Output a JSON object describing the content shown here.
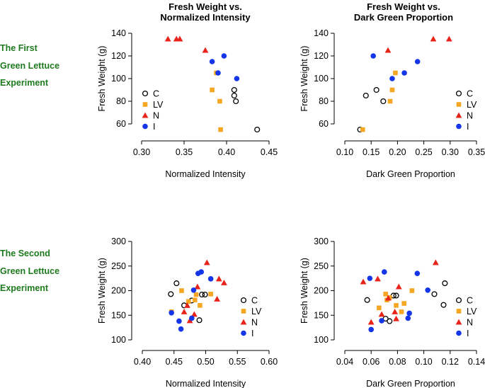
{
  "column_titles": [
    [
      "Fresh Weight vs.",
      "Normalized Intensity"
    ],
    [
      "Fresh Weight vs.",
      "Dark Green Proportion"
    ]
  ],
  "row_labels": [
    [
      "The First",
      "Green Lettuce",
      "Experiment"
    ],
    [
      "The Second",
      "Green Lettuce",
      "Experiment"
    ]
  ],
  "legend_items": [
    {
      "label": "C",
      "marker": "open-circle",
      "color": "#000000"
    },
    {
      "label": "LV",
      "marker": "square",
      "color": "#F5A623"
    },
    {
      "label": "N",
      "marker": "triangle",
      "color": "#E8231A"
    },
    {
      "label": "I",
      "marker": "circle",
      "color": "#1435E8"
    }
  ],
  "chart_data": [
    {
      "type": "scatter",
      "panel": "first-intensity",
      "xlabel": "Normalized Intensity",
      "ylabel": "Fresh Weight (g)",
      "xlim": [
        0.3,
        0.45
      ],
      "ylim": [
        52,
        145
      ],
      "xticks": [
        0.3,
        0.35,
        0.4,
        0.45
      ],
      "xtick_labels": [
        "0.30",
        "0.35",
        "0.40",
        "0.45"
      ],
      "yticks": [
        60,
        80,
        100,
        120,
        140
      ],
      "ytick_labels": [
        "60",
        "80",
        "100",
        "120",
        "140"
      ],
      "series": [
        {
          "name": "C",
          "points": [
            [
              0.409,
              90
            ],
            [
              0.409,
              85
            ],
            [
              0.411,
              80
            ],
            [
              0.436,
              55
            ]
          ]
        },
        {
          "name": "LV",
          "points": [
            [
              0.383,
              90
            ],
            [
              0.392,
              80
            ],
            [
              0.393,
              55
            ],
            [
              0.388,
              105
            ]
          ]
        },
        {
          "name": "N",
          "points": [
            [
              0.331,
              135
            ],
            [
              0.341,
              135
            ],
            [
              0.345,
              135
            ],
            [
              0.375,
              125
            ]
          ]
        },
        {
          "name": "I",
          "points": [
            [
              0.383,
              115
            ],
            [
              0.39,
              105
            ],
            [
              0.397,
              120
            ],
            [
              0.412,
              100
            ]
          ]
        }
      ]
    },
    {
      "type": "scatter",
      "panel": "first-darkgreen",
      "xlabel": "Dark Green Proportion",
      "ylabel": "Fresh Weight (g)",
      "xlim": [
        0.1,
        0.35
      ],
      "ylim": [
        52,
        145
      ],
      "xticks": [
        0.1,
        0.15,
        0.2,
        0.25,
        0.3,
        0.35
      ],
      "xtick_labels": [
        "0.10",
        "0.15",
        "0.20",
        "0.25",
        "0.30",
        "0.35"
      ],
      "yticks": [
        60,
        80,
        100,
        120,
        140
      ],
      "ytick_labels": [
        "60",
        "80",
        "100",
        "120",
        "140"
      ],
      "series": [
        {
          "name": "C",
          "points": [
            [
              0.129,
              55
            ],
            [
              0.14,
              85
            ],
            [
              0.16,
              90
            ],
            [
              0.173,
              80
            ]
          ]
        },
        {
          "name": "LV",
          "points": [
            [
              0.134,
              55
            ],
            [
              0.186,
              80
            ],
            [
              0.19,
              90
            ],
            [
              0.196,
              105
            ]
          ]
        },
        {
          "name": "N",
          "points": [
            [
              0.182,
              125
            ],
            [
              0.268,
              135
            ],
            [
              0.298,
              135
            ]
          ]
        },
        {
          "name": "I",
          "points": [
            [
              0.154,
              120
            ],
            [
              0.19,
              100
            ],
            [
              0.213,
              105
            ],
            [
              0.238,
              115
            ]
          ]
        }
      ]
    },
    {
      "type": "scatter",
      "panel": "second-intensity",
      "xlabel": "Normalized Intensity",
      "ylabel": "Fresh Weight (g)",
      "xlim": [
        0.4,
        0.6
      ],
      "ylim": [
        98,
        302
      ],
      "xticks": [
        0.4,
        0.45,
        0.5,
        0.55,
        0.6
      ],
      "xtick_labels": [
        "0.40",
        "0.45",
        "0.50",
        "0.55",
        "0.60"
      ],
      "yticks": [
        100,
        150,
        200,
        250,
        300
      ],
      "ytick_labels": [
        "100",
        "150",
        "200",
        "250",
        "300"
      ],
      "series": [
        {
          "name": "C",
          "points": [
            [
              0.445,
              193
            ],
            [
              0.454,
              215
            ],
            [
              0.466,
              170
            ],
            [
              0.478,
              180
            ],
            [
              0.494,
              192
            ],
            [
              0.499,
              192
            ],
            [
              0.49,
              140
            ]
          ]
        },
        {
          "name": "LV",
          "points": [
            [
              0.446,
              157
            ],
            [
              0.462,
              200
            ],
            [
              0.473,
              178
            ],
            [
              0.483,
              181
            ],
            [
              0.485,
              192
            ],
            [
              0.491,
              170
            ],
            [
              0.508,
              193
            ]
          ]
        },
        {
          "name": "N",
          "points": [
            [
              0.466,
              157
            ],
            [
              0.471,
              170
            ],
            [
              0.475,
              139
            ],
            [
              0.482,
              152
            ],
            [
              0.487,
              208
            ],
            [
              0.502,
              257
            ],
            [
              0.518,
              183
            ],
            [
              0.521,
              224
            ],
            [
              0.529,
              216
            ]
          ]
        },
        {
          "name": "I",
          "points": [
            [
              0.446,
              155
            ],
            [
              0.458,
              138
            ],
            [
              0.461,
              122
            ],
            [
              0.478,
              144
            ],
            [
              0.481,
              201
            ],
            [
              0.488,
              235
            ],
            [
              0.493,
              238
            ],
            [
              0.508,
              224
            ]
          ]
        }
      ]
    },
    {
      "type": "scatter",
      "panel": "second-darkgreen",
      "xlabel": "Dark Green Proportion",
      "ylabel": "Fresh Weight (g)",
      "xlim": [
        0.04,
        0.14
      ],
      "ylim": [
        98,
        302
      ],
      "xticks": [
        0.04,
        0.06,
        0.08,
        0.1,
        0.12,
        0.14
      ],
      "xtick_labels": [
        "0.04",
        "0.06",
        "0.08",
        "0.10",
        "0.12",
        "0.14"
      ],
      "yticks": [
        100,
        150,
        200,
        250,
        300
      ],
      "ytick_labels": [
        "100",
        "150",
        "200",
        "250",
        "300"
      ],
      "series": [
        {
          "name": "C",
          "points": [
            [
              0.057,
              181
            ],
            [
              0.071,
              143
            ],
            [
              0.074,
              138
            ],
            [
              0.077,
              190
            ],
            [
              0.079,
              190
            ],
            [
              0.108,
              193
            ],
            [
              0.116,
              215
            ],
            [
              0.115,
              171
            ]
          ]
        },
        {
          "name": "LV",
          "points": [
            [
              0.066,
              165
            ],
            [
              0.071,
              193
            ],
            [
              0.072,
              181
            ],
            [
              0.074,
              186
            ],
            [
              0.079,
              170
            ],
            [
              0.083,
              157
            ],
            [
              0.085,
              174
            ],
            [
              0.091,
              200
            ]
          ]
        },
        {
          "name": "N",
          "points": [
            [
              0.054,
              218
            ],
            [
              0.06,
              136
            ],
            [
              0.065,
              224
            ],
            [
              0.068,
              152
            ],
            [
              0.073,
              185
            ],
            [
              0.078,
              157
            ],
            [
              0.079,
              143
            ],
            [
              0.081,
              208
            ],
            [
              0.109,
              257
            ]
          ]
        },
        {
          "name": "I",
          "points": [
            [
              0.059,
              225
            ],
            [
              0.06,
              121
            ],
            [
              0.068,
              139
            ],
            [
              0.07,
              238
            ],
            [
              0.088,
              144
            ],
            [
              0.089,
              154
            ],
            [
              0.095,
              235
            ],
            [
              0.103,
              201
            ]
          ]
        }
      ]
    }
  ]
}
